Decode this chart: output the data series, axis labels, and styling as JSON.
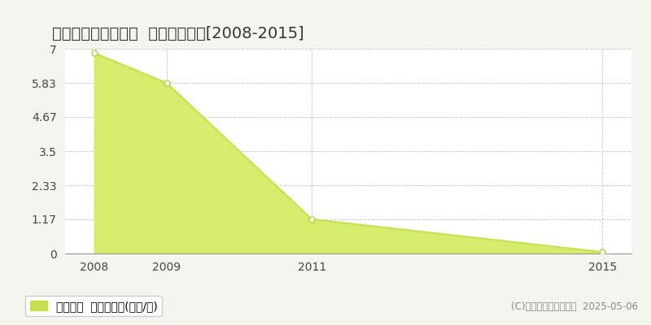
{
  "title": "佐用郡佐用町口金近  土地価格推移[2008-2015]",
  "x_values": [
    2008,
    2009,
    2011,
    2015
  ],
  "y_values": [
    6.86,
    5.83,
    1.17,
    0.05
  ],
  "y_ticks": [
    0,
    1.17,
    2.33,
    3.5,
    4.67,
    5.83,
    7
  ],
  "x_ticks": [
    2008,
    2009,
    2011,
    2015
  ],
  "xlim": [
    2007.6,
    2015.4
  ],
  "ylim": [
    0,
    7
  ],
  "line_color": "#c8e050",
  "fill_color": "#d4ed6a",
  "marker_color": "#ffffff",
  "marker_edge_color": "#b8cc40",
  "bg_color": "#f5f5f0",
  "plot_bg_color": "#ffffff",
  "grid_color": "#cccccc",
  "legend_label": "土地価格  平均坪単価(万円/坪)",
  "legend_square_color": "#c8e050",
  "copyright_text": "(C)土地価格ドットコム  2025-05-06",
  "title_fontsize": 14,
  "tick_fontsize": 10,
  "legend_fontsize": 10
}
